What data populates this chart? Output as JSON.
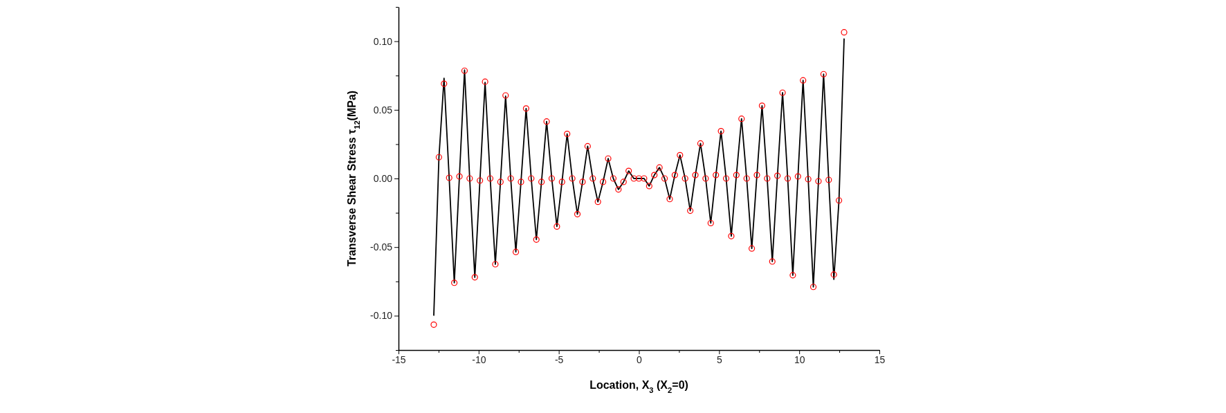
{
  "chart_data": {
    "type": "line",
    "xlabel": "Location, X$_{3}$ (X$_{2}$=0)",
    "ylabel": "Transverse Shear Stress τ$_{12}$(MPa)",
    "x": [
      -12.8,
      -12.48,
      -12.16,
      -11.84,
      -11.52,
      -11.2,
      -10.88,
      -10.56,
      -10.24,
      -9.92,
      -9.6,
      -9.28,
      -8.96,
      -8.64,
      -8.32,
      -8,
      -7.68,
      -7.36,
      -7.04,
      -6.72,
      -6.4,
      -6.08,
      -5.76,
      -5.44,
      -5.12,
      -4.8,
      -4.48,
      -4.16,
      -3.84,
      -3.52,
      -3.2,
      -2.88,
      -2.56,
      -2.24,
      -1.92,
      -1.6,
      -1.28,
      -0.96,
      -0.64,
      -0.32,
      0,
      0.32,
      0.64,
      0.96,
      1.28,
      1.6,
      1.92,
      2.24,
      2.56,
      2.88,
      3.2,
      3.52,
      3.84,
      4.16,
      4.48,
      4.8,
      5.12,
      5.44,
      5.76,
      6.08,
      6.4,
      6.72,
      7.04,
      7.36,
      7.68,
      8,
      8.32,
      8.64,
      8.96,
      9.28,
      9.6,
      9.92,
      10.24,
      10.56,
      10.88,
      11.2,
      11.52,
      11.84,
      12.16,
      12.48,
      12.8
    ],
    "series": [
      {
        "color": "#000000",
        "marker": "none",
        "values": [
          -0.1,
          0.015,
          0.073,
          0.0005,
          -0.076,
          0.0015,
          0.079,
          0,
          -0.072,
          -0.0015,
          0.07,
          0,
          -0.0625,
          -0.0025,
          0.06,
          0,
          -0.0535,
          -0.0025,
          0.051,
          0,
          -0.0445,
          -0.0025,
          0.0415,
          0,
          -0.035,
          -0.0025,
          0.0325,
          0,
          -0.026,
          -0.0025,
          0.0235,
          0,
          -0.017,
          -0.0025,
          0.0145,
          0,
          -0.008,
          -0.0025,
          0.0055,
          0,
          0,
          0,
          -0.0055,
          0.0025,
          0.008,
          0,
          -0.015,
          0.0025,
          0.017,
          0,
          -0.0235,
          0.0025,
          0.0255,
          0,
          -0.0325,
          0.0025,
          0.0345,
          0,
          -0.042,
          0.0025,
          0.0435,
          0,
          -0.051,
          0.0025,
          0.053,
          0,
          -0.0605,
          0.002,
          0.0625,
          0,
          -0.0705,
          0.0015,
          0.0715,
          -0.0005,
          -0.079,
          -0.002,
          0.076,
          -0.001,
          -0.0735,
          -0.016,
          0.102
        ]
      },
      {
        "type": "scatter",
        "color": "#ff0000",
        "marker": "circle",
        "values": [
          -0.1065,
          0.0155,
          0.069,
          0.0005,
          -0.076,
          0.0015,
          0.0785,
          0,
          -0.072,
          -0.0015,
          0.0705,
          0,
          -0.0625,
          -0.0025,
          0.0605,
          0,
          -0.0535,
          -0.0025,
          0.051,
          0,
          -0.0445,
          -0.0025,
          0.0415,
          0,
          -0.035,
          -0.0025,
          0.0325,
          0,
          -0.026,
          -0.0025,
          0.0235,
          0,
          -0.017,
          -0.0025,
          0.0145,
          0,
          -0.008,
          -0.0025,
          0.0055,
          0,
          0,
          0,
          -0.0055,
          0.0025,
          0.008,
          0,
          -0.015,
          0.0025,
          0.017,
          0,
          -0.0235,
          0.0025,
          0.0255,
          0,
          -0.0325,
          0.0025,
          0.0345,
          0,
          -0.042,
          0.0025,
          0.0435,
          0,
          -0.051,
          0.0025,
          0.053,
          0,
          -0.0605,
          0.002,
          0.0625,
          0,
          -0.0705,
          0.0015,
          0.0715,
          -0.0005,
          -0.079,
          -0.002,
          0.076,
          -0.001,
          -0.07,
          -0.016,
          0.1065
        ]
      }
    ],
    "xlim": [
      -15,
      15
    ],
    "xticks": [
      -15,
      {
        "value": -12.5,
        "label": null
      },
      -10,
      {
        "value": -7.5,
        "label": null
      },
      -5,
      {
        "value": -2.5,
        "label": null
      },
      0,
      {
        "value": 2.5,
        "label": null
      },
      5,
      {
        "value": 7.5,
        "label": null
      },
      10,
      {
        "value": 12.5,
        "label": null
      },
      15
    ],
    "ylim": [
      -0.125,
      0.125
    ],
    "yticks": [
      {
        "value": -0.125,
        "label": null
      },
      {
        "value": -0.1,
        "label": "-0.10"
      },
      {
        "value": -0.075,
        "label": null
      },
      {
        "value": -0.05,
        "label": "-0.05"
      },
      {
        "value": -0.025,
        "label": null
      },
      {
        "value": 0,
        "label": "0.00"
      },
      {
        "value": 0.025,
        "label": null
      },
      {
        "value": 0.05,
        "label": "0.05"
      },
      {
        "value": 0.075,
        "label": null
      },
      {
        "value": 0.1,
        "label": "0.10"
      },
      {
        "value": 0.125,
        "label": null
      }
    ],
    "grid": false
  }
}
